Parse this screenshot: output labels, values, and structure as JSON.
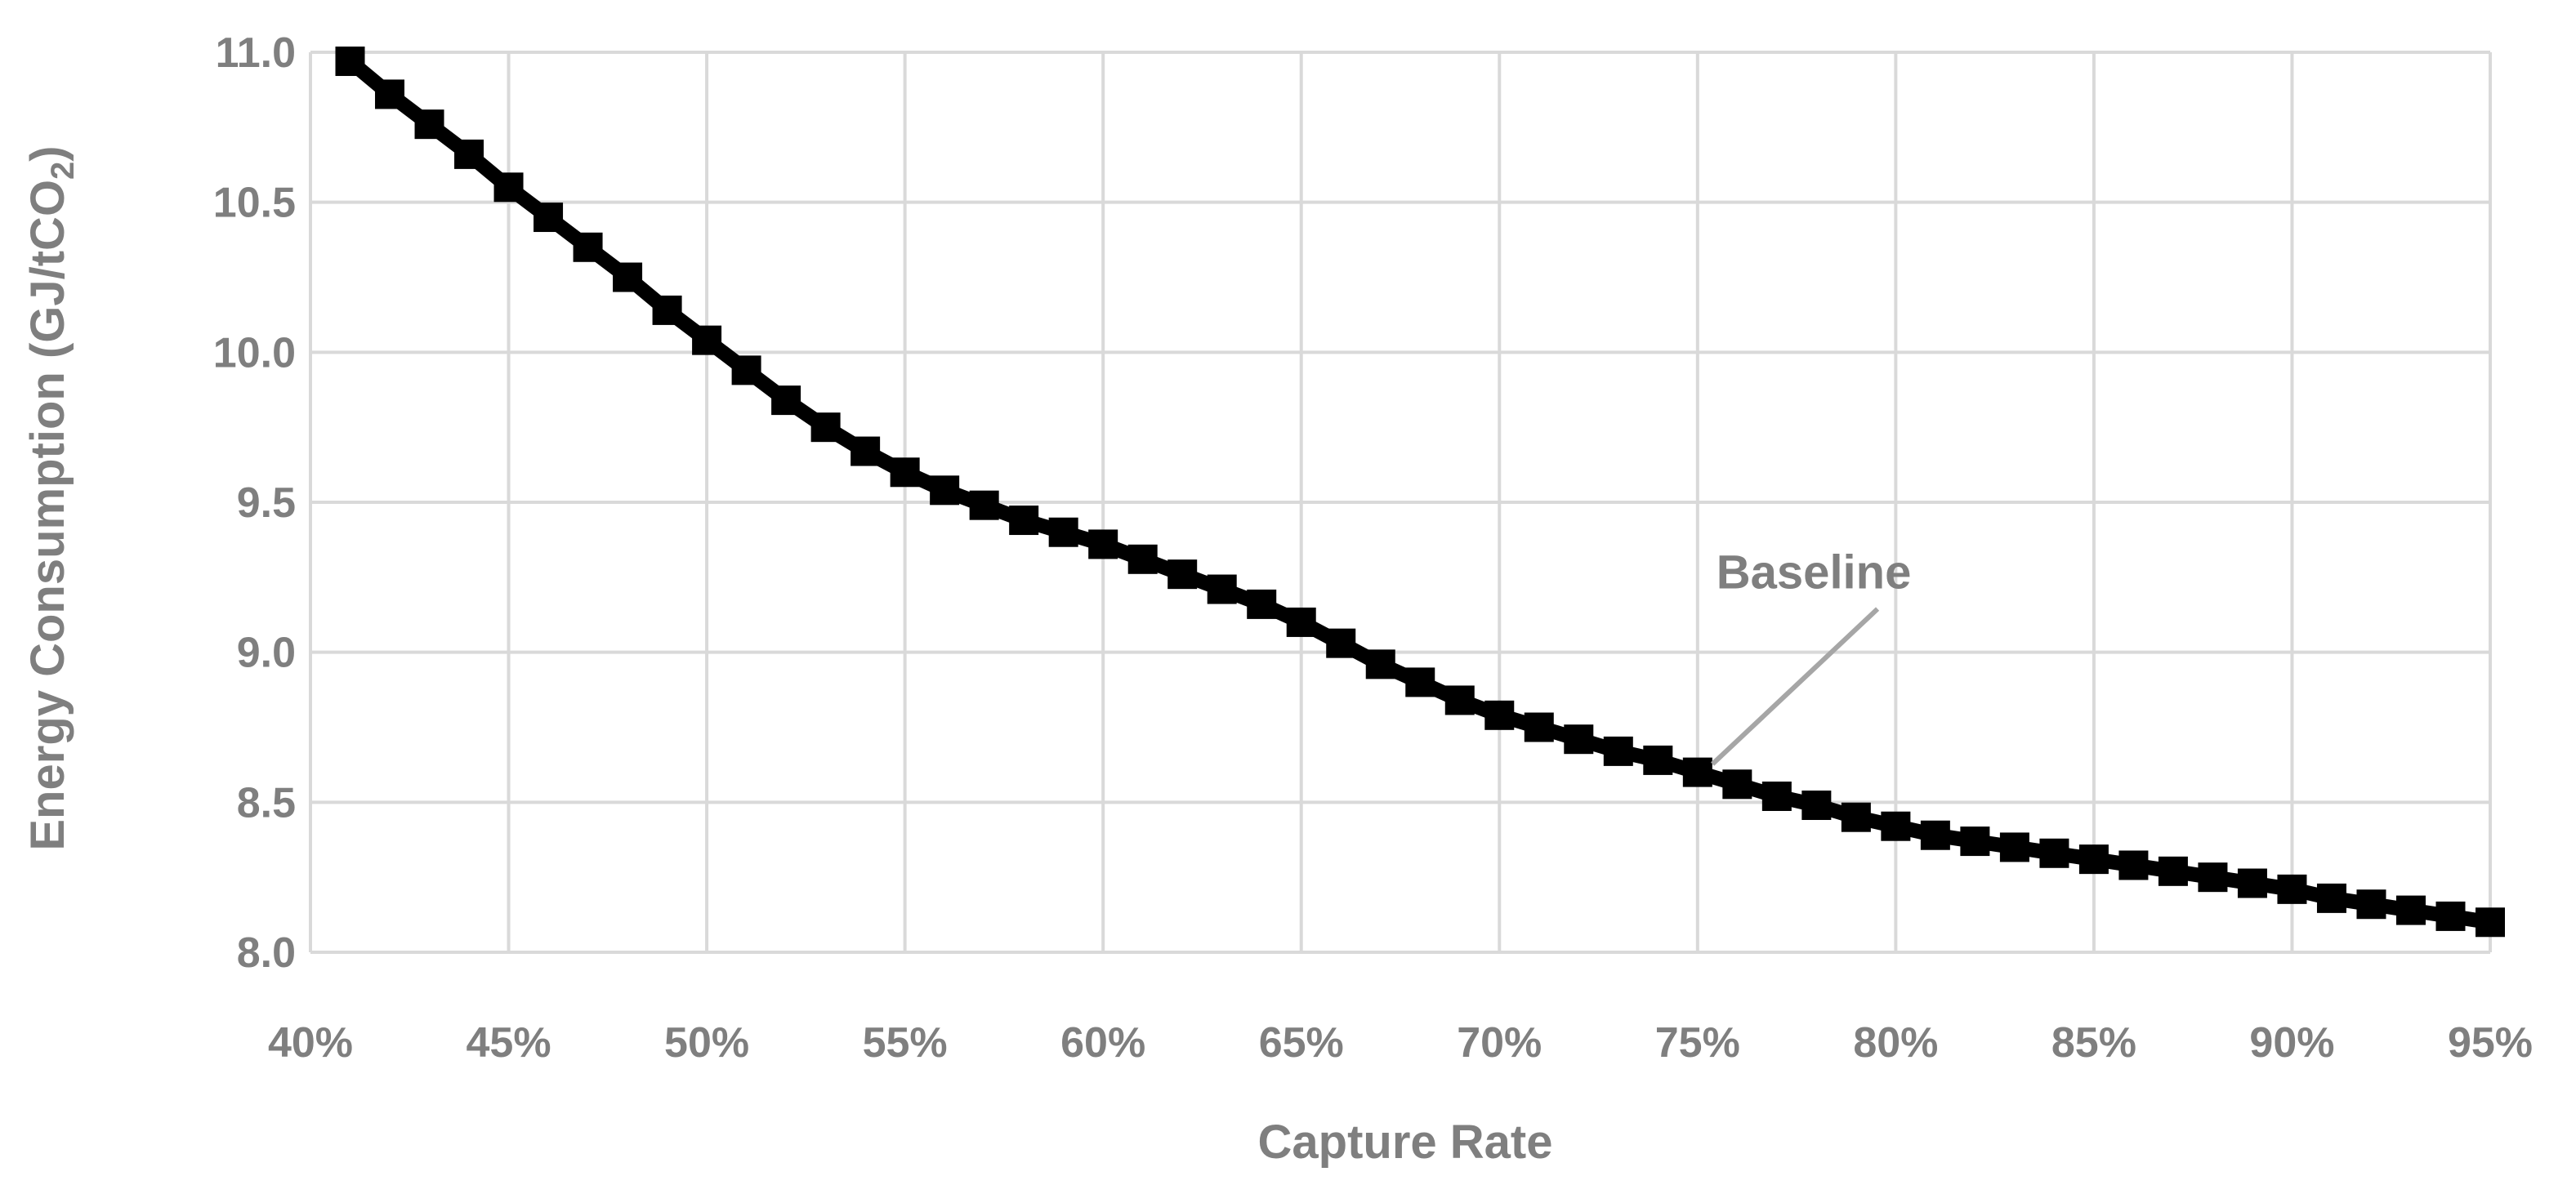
{
  "chart_data": {
    "type": "line",
    "title": "",
    "xlabel": "Capture Rate",
    "ylabel": "Energy Consumption (GJ/tCO",
    "ylabel_subscript": "2",
    "ylabel_suffix": ")",
    "xlim": [
      0.4,
      0.95
    ],
    "ylim": [
      8.0,
      11.0
    ],
    "grid": true,
    "legend": "none",
    "x_ticks": [
      {
        "value": 0.4,
        "label": "40%"
      },
      {
        "value": 0.45,
        "label": "45%"
      },
      {
        "value": 0.5,
        "label": "50%"
      },
      {
        "value": 0.55,
        "label": "55%"
      },
      {
        "value": 0.6,
        "label": "60%"
      },
      {
        "value": 0.65,
        "label": "65%"
      },
      {
        "value": 0.7,
        "label": "70%"
      },
      {
        "value": 0.75,
        "label": "75%"
      },
      {
        "value": 0.8,
        "label": "80%"
      },
      {
        "value": 0.85,
        "label": "85%"
      },
      {
        "value": 0.9,
        "label": "90%"
      },
      {
        "value": 0.95,
        "label": "95%"
      }
    ],
    "y_ticks": [
      {
        "value": 8.0,
        "label": "8.0"
      },
      {
        "value": 8.5,
        "label": "8.5"
      },
      {
        "value": 9.0,
        "label": "9.0"
      },
      {
        "value": 9.5,
        "label": "9.5"
      },
      {
        "value": 10.0,
        "label": "10.0"
      },
      {
        "value": 10.5,
        "label": "10.5"
      },
      {
        "value": 11.0,
        "label": "11.0"
      }
    ],
    "series": [
      {
        "color": "#000000",
        "marker": "square",
        "x": [
          0.41,
          0.42,
          0.43,
          0.44,
          0.45,
          0.46,
          0.47,
          0.48,
          0.49,
          0.5,
          0.51,
          0.52,
          0.53,
          0.54,
          0.55,
          0.56,
          0.57,
          0.58,
          0.59,
          0.6,
          0.61,
          0.62,
          0.63,
          0.64,
          0.65,
          0.66,
          0.67,
          0.68,
          0.69,
          0.7,
          0.71,
          0.72,
          0.73,
          0.74,
          0.75,
          0.76,
          0.77,
          0.78,
          0.79,
          0.8,
          0.81,
          0.82,
          0.83,
          0.84,
          0.85,
          0.86,
          0.87,
          0.88,
          0.89,
          0.9,
          0.91,
          0.92,
          0.93,
          0.94,
          0.95
        ],
        "y": [
          10.97,
          10.86,
          10.76,
          10.66,
          10.55,
          10.45,
          10.35,
          10.25,
          10.14,
          10.04,
          9.94,
          9.84,
          9.75,
          9.67,
          9.6,
          9.54,
          9.49,
          9.44,
          9.4,
          9.36,
          9.31,
          9.26,
          9.21,
          9.16,
          9.1,
          9.03,
          8.96,
          8.9,
          8.84,
          8.79,
          8.75,
          8.71,
          8.67,
          8.64,
          8.6,
          8.56,
          8.52,
          8.49,
          8.45,
          8.42,
          8.39,
          8.37,
          8.35,
          8.33,
          8.31,
          8.29,
          8.27,
          8.25,
          8.23,
          8.21,
          8.18,
          8.16,
          8.14,
          8.12,
          8.1
        ]
      }
    ],
    "annotations": [
      {
        "text": "Baseline",
        "x": 0.755,
        "y": 8.6
      }
    ],
    "colors": {
      "grid": "#d9d9d9",
      "text": "#7f7f7f",
      "series": "#000000",
      "leader": "#a6a6a6"
    }
  }
}
